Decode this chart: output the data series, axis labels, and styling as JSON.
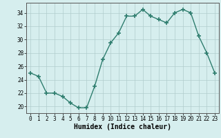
{
  "x": [
    0,
    1,
    2,
    3,
    4,
    5,
    6,
    7,
    8,
    9,
    10,
    11,
    12,
    13,
    14,
    15,
    16,
    17,
    18,
    19,
    20,
    21,
    22,
    23
  ],
  "y": [
    25.0,
    24.5,
    22.0,
    22.0,
    21.5,
    20.5,
    19.8,
    19.8,
    23.0,
    27.0,
    29.5,
    31.0,
    33.5,
    33.5,
    34.5,
    33.5,
    33.0,
    32.5,
    34.0,
    34.5,
    34.0,
    30.5,
    28.0,
    25.0
  ],
  "line_color": "#2e7d6e",
  "marker": "+",
  "markersize": 4,
  "linewidth": 1.0,
  "bg_color": "#d6eeee",
  "grid_color": "#b0cccc",
  "xlabel": "Humidex (Indice chaleur)",
  "xlabel_fontsize": 7,
  "tick_fontsize": 5.5,
  "yticks": [
    20,
    22,
    24,
    26,
    28,
    30,
    32,
    34
  ],
  "xticks": [
    0,
    1,
    2,
    3,
    4,
    5,
    6,
    7,
    8,
    9,
    10,
    11,
    12,
    13,
    14,
    15,
    16,
    17,
    18,
    19,
    20,
    21,
    22,
    23
  ],
  "ylim": [
    19.0,
    35.5
  ],
  "xlim": [
    -0.5,
    23.5
  ]
}
